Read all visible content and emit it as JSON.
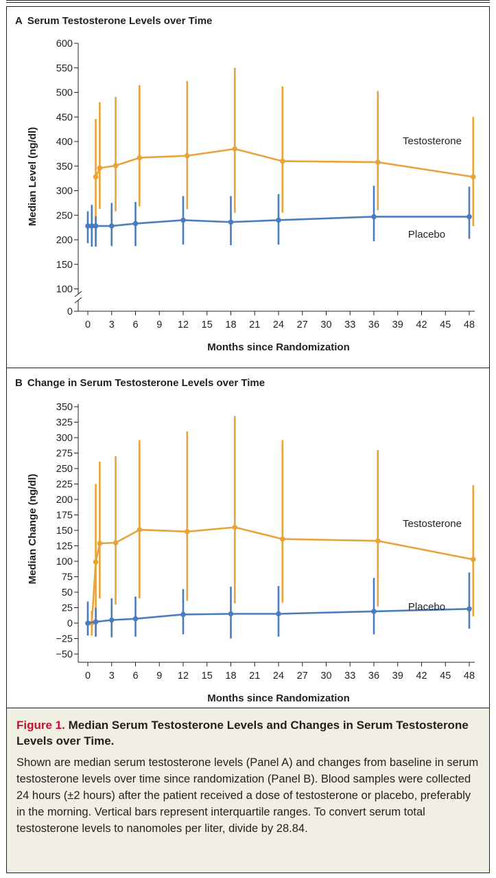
{
  "panels": [
    {
      "letter": "A",
      "title": "Serum Testosterone Levels over Time"
    },
    {
      "letter": "B",
      "title": "Change in Serum Testosterone Levels over Time"
    }
  ],
  "caption": {
    "label": "Figure 1.",
    "title": "Median Serum Testosterone Levels and Changes in Serum Testosterone Levels over Time.",
    "body": "Shown are median serum testosterone levels (Panel A) and changes from baseline in serum testosterone levels over time since randomization (Panel B). Blood samples were collected 24 hours (±2 hours) after the patient received a dose of testosterone or placebo, preferably in the morning. Vertical bars represent interquartile ranges. To convert serum total testosterone levels to nanomoles per liter, divide by 28.84."
  },
  "colors": {
    "testosterone": "#e8a33a",
    "placebo": "#4a7cc0",
    "caption_label": "#c8102e",
    "caption_background": "#f1eee3"
  },
  "chart_data": [
    {
      "type": "line",
      "title": "Serum Testosterone Levels over Time",
      "xlabel": "Months since Randomization",
      "ylabel": "Median Level (ng/dl)",
      "xticks": [
        "0",
        "3",
        "6",
        "9",
        "12",
        "15",
        "18",
        "21",
        "24",
        "27",
        "30",
        "33",
        "36",
        "39",
        "42",
        "45",
        "48"
      ],
      "yticks": [
        "0",
        "100",
        "150",
        "200",
        "250",
        "300",
        "350",
        "400",
        "450",
        "500",
        "550",
        "600"
      ],
      "ylim": [
        100,
        600
      ],
      "axis_break": true,
      "grid": false,
      "series": [
        {
          "name": "Testosterone",
          "color": "#e8a33a",
          "x": [
            1,
            1.5,
            3.5,
            6.5,
            12.5,
            18.5,
            24.5,
            36.5,
            48.5
          ],
          "y": [
            328,
            346,
            351,
            367,
            371,
            385,
            360,
            358,
            328
          ],
          "iqr_low": [
            198,
            263,
            258,
            268,
            262,
            255,
            255,
            260,
            228
          ],
          "iqr_high": [
            446,
            480,
            491,
            515,
            523,
            550,
            512,
            503,
            450
          ]
        },
        {
          "name": "Placebo",
          "color": "#4a7cc0",
          "x": [
            0,
            0.5,
            1,
            3,
            6,
            12,
            18,
            24,
            36,
            48
          ],
          "y": [
            228,
            228,
            228,
            228,
            233,
            240,
            236,
            240,
            247,
            247
          ],
          "iqr_low": [
            193,
            186,
            186,
            187,
            187,
            190,
            189,
            190,
            197,
            202
          ],
          "iqr_high": [
            258,
            271,
            248,
            275,
            277,
            289,
            289,
            293,
            310,
            308
          ]
        }
      ]
    },
    {
      "type": "line",
      "title": "Change in Serum Testosterone Levels over Time",
      "xlabel": "Months since Randomization",
      "ylabel": "Median Change (ng/dl)",
      "xticks": [
        "0",
        "3",
        "6",
        "9",
        "12",
        "15",
        "18",
        "21",
        "24",
        "27",
        "30",
        "33",
        "36",
        "39",
        "42",
        "45",
        "48"
      ],
      "yticks": [
        "−50",
        "−25",
        "0",
        "25",
        "50",
        "75",
        "100",
        "125",
        "150",
        "175",
        "200",
        "225",
        "250",
        "275",
        "300",
        "325",
        "350"
      ],
      "ylim": [
        -50,
        350
      ],
      "grid": false,
      "series": [
        {
          "name": "Testosterone",
          "color": "#e8a33a",
          "x": [
            0.5,
            1,
            1.5,
            3.5,
            6.5,
            12.5,
            18.5,
            24.5,
            36.5,
            48.5
          ],
          "y": [
            0,
            99,
            129,
            130,
            151,
            148,
            155,
            136,
            133,
            103
          ],
          "iqr_low": [
            -20,
            -20,
            40,
            30,
            40,
            36,
            32,
            33,
            27,
            11
          ],
          "iqr_high": [
            20,
            225,
            261,
            270,
            296,
            310,
            335,
            296,
            280,
            223
          ]
        },
        {
          "name": "Placebo",
          "color": "#4a7cc0",
          "x": [
            0,
            1,
            3,
            6,
            12,
            18,
            24,
            36,
            48
          ],
          "y": [
            0,
            2,
            5,
            7,
            14,
            15,
            15,
            19,
            23
          ],
          "iqr_low": [
            -20,
            -22,
            -23,
            -22,
            -18,
            -25,
            -22,
            -18,
            -9
          ],
          "iqr_high": [
            35,
            25,
            40,
            43,
            55,
            59,
            60,
            73,
            82
          ]
        }
      ]
    }
  ]
}
